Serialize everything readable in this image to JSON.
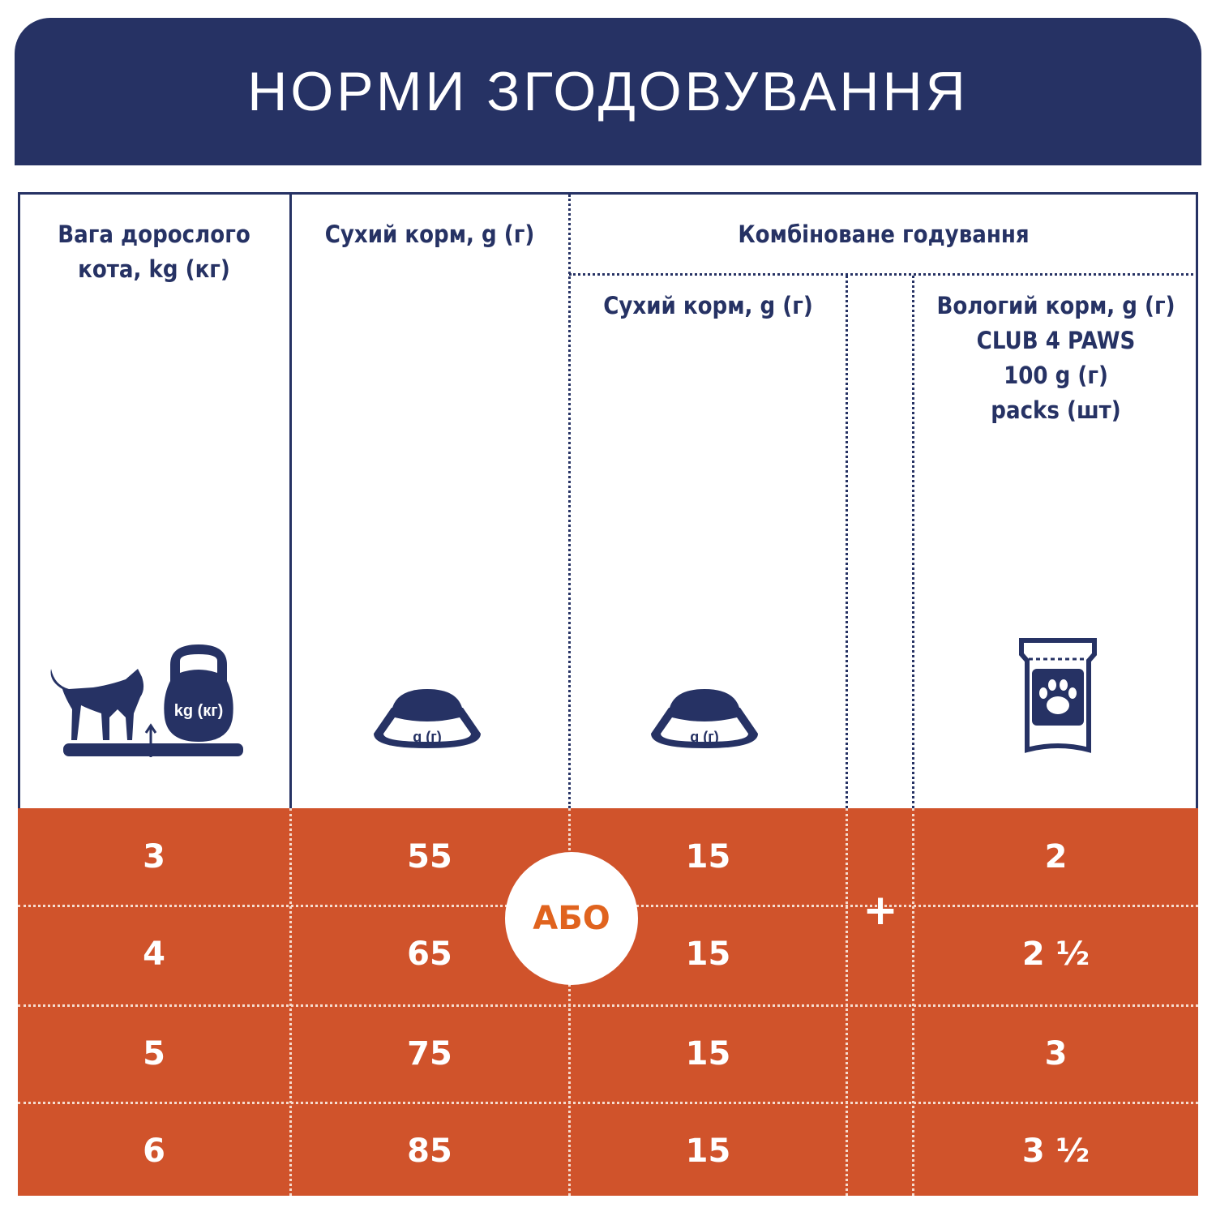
{
  "title": "НОРМИ ЗГОДОВУВАННЯ",
  "colors": {
    "navy": "#263264",
    "orange": "#d0532b",
    "abo_text": "#e0631e"
  },
  "headers": {
    "weight": "Вага дорослого кота, kg (кг)",
    "dry": "Сухий корм, g (г)",
    "combined": "Комбіноване годування",
    "combined_dry": "Сухий корм, g (г)",
    "combined_wet": [
      "Вологий корм, g (г)",
      "CLUB 4 PAWS",
      "100 g (г)",
      "packs (шт)"
    ]
  },
  "icons": {
    "weight": {
      "name": "cat-kettlebell-icon",
      "label": "kg (кг)"
    },
    "dry": {
      "name": "food-bowl-icon",
      "label": "g (г)"
    },
    "combined_dry": {
      "name": "food-bowl-icon",
      "label": "g (г)"
    },
    "combined_wet": {
      "name": "pouch-paw-icon"
    }
  },
  "or_label": "АБО",
  "plus_label": "+",
  "rows": [
    {
      "weight": "3",
      "dry": "55",
      "combined_dry": "15",
      "wet": "2"
    },
    {
      "weight": "4",
      "dry": "65",
      "combined_dry": "15",
      "wet": "2 ½"
    },
    {
      "weight": "5",
      "dry": "75",
      "combined_dry": "15",
      "wet": "3"
    },
    {
      "weight": "6",
      "dry": "85",
      "combined_dry": "15",
      "wet": "3 ½"
    }
  ]
}
